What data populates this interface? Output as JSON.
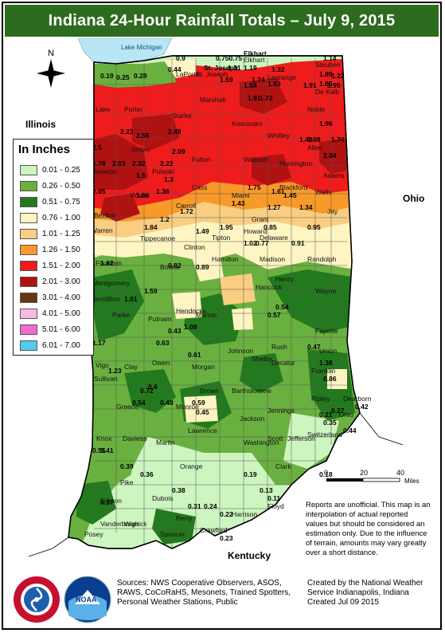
{
  "title": "Indiana 24-Hour Rainfall Totals – July 9, 2015",
  "legend": {
    "title": "In Inches",
    "items": [
      {
        "label": "0.01 - 0.25",
        "color": "#ccf5c0"
      },
      {
        "label": "0.26 - 0.50",
        "color": "#6ab040"
      },
      {
        "label": "0.51 - 0.75",
        "color": "#237a1e"
      },
      {
        "label": "0.76 - 1.00",
        "color": "#fff5c2"
      },
      {
        "label": "1.01 - 1.25",
        "color": "#f9cd82"
      },
      {
        "label": "1.26 - 1.50",
        "color": "#f79a2a"
      },
      {
        "label": "1.51 - 2.00",
        "color": "#ee1c1c"
      },
      {
        "label": "2.01 - 3.00",
        "color": "#b01212"
      },
      {
        "label": "3.01 - 4.00",
        "color": "#6b3512"
      },
      {
        "label": "4.01 - 5.00",
        "color": "#f9b9e0"
      },
      {
        "label": "5.01 - 6.00",
        "color": "#f06ad2"
      },
      {
        "label": "6.01 - 7.00",
        "color": "#55c9f0"
      }
    ]
  },
  "place_labels": {
    "illinois": "Illinois",
    "ohio": "Ohio",
    "kentucky": "Kentucky",
    "lake": "Lake Michigan"
  },
  "north_label": "N",
  "scale": {
    "ticks": [
      "0",
      "20",
      "40"
    ],
    "unit": "Miles"
  },
  "counties": [
    "Lake",
    "Porter",
    "LaPorte",
    "St. Joseph",
    "Elkhart",
    "Lagrange",
    "Steuben",
    "Noble",
    "De Kalb",
    "Starke",
    "Marshall",
    "Kosciusko",
    "Whitley",
    "Allen",
    "Newton",
    "Jasper",
    "Pulaski",
    "Fulton",
    "Wabash",
    "Huntington",
    "Wells",
    "Adams",
    "Benton",
    "White",
    "Cass",
    "Miami",
    "Grant",
    "Blackford",
    "Jay",
    "Carroll",
    "Howard",
    "Warren",
    "Tippecanoe",
    "Clinton",
    "Tipton",
    "Madison",
    "Delaware",
    "Randolph",
    "Fountain",
    "Boone",
    "Hamilton",
    "Henry",
    "Wayne",
    "Montgomery",
    "Hendricks",
    "Hancock",
    "Vermillion",
    "Parke",
    "Putnam",
    "Marion",
    "Shelby",
    "Rush",
    "Fayette",
    "Union",
    "Vigo",
    "Clay",
    "Owen",
    "Morgan",
    "Johnson",
    "Decatur",
    "Franklin",
    "Sullivan",
    "Greene",
    "Brown",
    "Bartholomew",
    "Jennings",
    "Ripley",
    "Dearborn",
    "Monroe",
    "Jackson",
    "Ohio",
    "Lawrence",
    "Switzerland",
    "Knox",
    "Daviess",
    "Martin",
    "Washington",
    "Scott",
    "Jefferson",
    "Orange",
    "Clark",
    "Pike",
    "Dubois",
    "Floyd",
    "Gibson",
    "Warrick",
    "Crawford",
    "Harrison",
    "Vanderburgh",
    "Posey",
    "Spencer",
    "Perry"
  ],
  "values": [
    "0.9",
    "0.750.75",
    "Elkhart",
    "0.19",
    "0.25",
    "0.28",
    "0.44",
    "St. Joseph",
    "1.31",
    "1.19",
    "1.32",
    "1.14",
    "1.22",
    "1.89",
    "1.59",
    "1.74",
    "1.58",
    "1.93",
    "1.91",
    "1.95",
    "1.65",
    "1.91",
    "1.72",
    "2.48",
    "2.55",
    "2.23",
    "1.96",
    "1.68",
    "1.74",
    "1.48",
    "2.84",
    "2.03",
    "2.32",
    "2.22",
    "2.09",
    "1.5",
    "1.3",
    "1.36",
    "1.66",
    "1.61",
    "1.45",
    "1.27",
    "1.34",
    "2.5",
    "2.05",
    "1.75",
    "1.78",
    "1.43",
    "1.72",
    "1.95",
    "1.84",
    "1.2",
    "0.85",
    "1.49",
    "0.95",
    "1.02",
    "0.91",
    "0.77",
    "0.82",
    "0.89",
    "1.62",
    "1.59",
    "1.01",
    "1.17",
    "1.23",
    "0.63",
    "0.72",
    "0.54",
    "0.55",
    "0.41",
    "0.39",
    "0.36",
    "0.37",
    "0.38",
    "0.31",
    "0.24",
    "0.22",
    "0.23",
    "0.19",
    "0.13",
    "0.11",
    "0.18",
    "0.21",
    "0.27",
    "0.35",
    "0.44",
    "0.42",
    "0.57",
    "0.54",
    "0.61",
    "0.59",
    "0.6",
    "0.48",
    "0.45",
    "1.08",
    "0.43",
    "0.47",
    "1.38",
    "0.86"
  ],
  "disclaimer": "Reports are unofficial. This map is an interpolation of actual reported values but should be considered an estimation only. Due to the influence of terrain, amounts may vary greatly over a short distance.",
  "sources": "Sources: NWS Cooperative Observers, ASOS, RAWS, CoCoRaHS, Mesonets, Trained Spotters, Personal Weather Stations, Public",
  "credit_line1": "Created by the National Weather",
  "credit_line2": "Service Indianapolis, Indiana",
  "credit_line3": "Created Jul 09 2015",
  "logos": {
    "nws_text": "NATIONAL WEATHER SERVICE",
    "noaa_text": "NOAA"
  }
}
